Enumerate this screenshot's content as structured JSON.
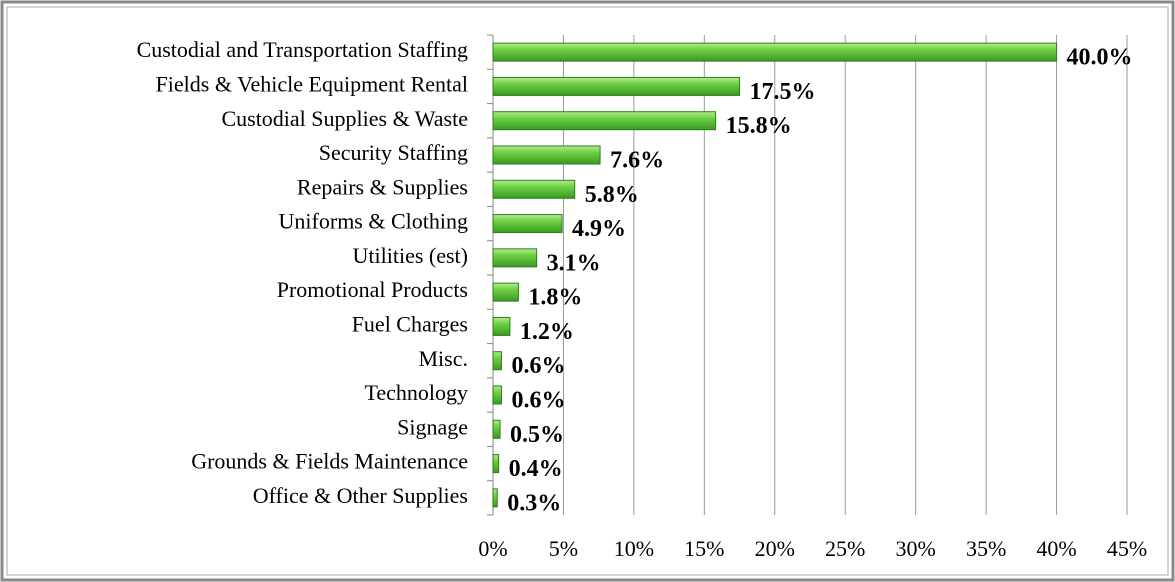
{
  "chart_data": {
    "type": "bar",
    "orientation": "horizontal",
    "categories": [
      "Custodial and Transportation Staffing",
      "Fields & Vehicle Equipment Rental",
      "Custodial Supplies & Waste",
      "Security Staffing",
      "Repairs & Supplies",
      "Uniforms & Clothing",
      "Utilities (est)",
      "Promotional Products",
      "Fuel Charges",
      "Misc.",
      "Technology",
      "Signage",
      "Grounds & Fields Maintenance",
      "Office & Other Supplies"
    ],
    "values": [
      40.0,
      17.5,
      15.8,
      7.6,
      5.8,
      4.9,
      3.1,
      1.8,
      1.2,
      0.6,
      0.6,
      0.5,
      0.4,
      0.3
    ],
    "value_labels": [
      "40.0%",
      "17.5%",
      "15.8%",
      "7.6%",
      "5.8%",
      "4.9%",
      "3.1%",
      "1.8%",
      "1.2%",
      "0.6%",
      "0.6%",
      "0.5%",
      "0.4%",
      "0.3%"
    ],
    "color": "#5cbf3a",
    "xlim": [
      0,
      45
    ],
    "xticks": [
      {
        "value": 0,
        "label": "0%"
      },
      {
        "value": 5,
        "label": "5%"
      },
      {
        "value": 10,
        "label": "10%"
      },
      {
        "value": 15,
        "label": "15%"
      },
      {
        "value": 20,
        "label": "20%"
      },
      {
        "value": 25,
        "label": "25%"
      },
      {
        "value": 30,
        "label": "30%"
      },
      {
        "value": 35,
        "label": "35%"
      },
      {
        "value": 40,
        "label": "40%"
      },
      {
        "value": 45,
        "label": "45%"
      }
    ],
    "grid": true
  }
}
